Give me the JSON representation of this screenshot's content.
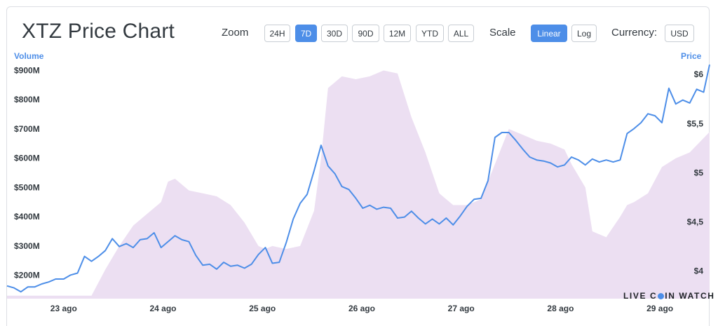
{
  "header": {
    "title": "XTZ Price Chart",
    "zoom_label": "Zoom",
    "zoom_options": [
      "24H",
      "7D",
      "30D",
      "90D",
      "12M",
      "YTD",
      "ALL"
    ],
    "zoom_selected": "7D",
    "scale_label": "Scale",
    "scale_options": [
      "Linear",
      "Log"
    ],
    "scale_selected": "Linear",
    "currency_label": "Currency:",
    "currency": "USD"
  },
  "watermark": {
    "before": "LIVE C",
    "after": "IN WATCH"
  },
  "colors": {
    "accent": "#4d8ee8",
    "volume_fill": "#ecdff2",
    "text": "#333a40"
  },
  "chart_data": {
    "type": "line",
    "left_axis": {
      "title": "Volume",
      "ticks": [
        "$200M",
        "$300M",
        "$400M",
        "$500M",
        "$600M",
        "$700M",
        "$800M",
        "$900M"
      ],
      "range": [
        120000000,
        930000000
      ]
    },
    "right_axis": {
      "title": "Price",
      "ticks": [
        "$4",
        "$4,5",
        "$5",
        "$5,5",
        "$6"
      ],
      "range": [
        3.72,
        6.13
      ]
    },
    "x_ticks": [
      "23 ago",
      "24 ago",
      "25 ago",
      "26 ago",
      "27 ago",
      "28 ago",
      "29 ago"
    ],
    "x_range": [
      -0.57,
      6.5
    ],
    "series": [
      {
        "name": "Price",
        "axis": "right",
        "kind": "line",
        "x": [
          -0.57,
          -0.5,
          -0.43,
          -0.36,
          -0.29,
          -0.22,
          -0.15,
          -0.08,
          0.0,
          0.07,
          0.14,
          0.21,
          0.28,
          0.35,
          0.42,
          0.49,
          0.56,
          0.63,
          0.7,
          0.77,
          0.84,
          0.91,
          0.98,
          1.05,
          1.12,
          1.19,
          1.26,
          1.33,
          1.4,
          1.47,
          1.54,
          1.61,
          1.68,
          1.75,
          1.82,
          1.89,
          1.96,
          2.03,
          2.1,
          2.17,
          2.24,
          2.31,
          2.38,
          2.45,
          2.52,
          2.59,
          2.66,
          2.73,
          2.8,
          2.87,
          2.94,
          3.01,
          3.08,
          3.15,
          3.22,
          3.29,
          3.36,
          3.43,
          3.5,
          3.57,
          3.64,
          3.71,
          3.78,
          3.85,
          3.92,
          3.99,
          4.06,
          4.13,
          4.2,
          4.27,
          4.34,
          4.41,
          4.48,
          4.55,
          4.62,
          4.69,
          4.76,
          4.83,
          4.9,
          4.97,
          5.04,
          5.11,
          5.18,
          5.25,
          5.32,
          5.39,
          5.46,
          5.53,
          5.6,
          5.67,
          5.74,
          5.81,
          5.88,
          5.95,
          6.02,
          6.09,
          6.16,
          6.23,
          6.3,
          6.37,
          6.44,
          6.5
        ],
        "values": [
          3.85,
          3.83,
          3.79,
          3.84,
          3.84,
          3.87,
          3.89,
          3.92,
          3.92,
          3.96,
          3.98,
          4.15,
          4.1,
          4.15,
          4.21,
          4.33,
          4.25,
          4.28,
          4.24,
          4.32,
          4.33,
          4.39,
          4.24,
          4.3,
          4.36,
          4.32,
          4.3,
          4.16,
          4.06,
          4.07,
          4.02,
          4.09,
          4.05,
          4.06,
          4.03,
          4.07,
          4.17,
          4.24,
          4.08,
          4.09,
          4.29,
          4.53,
          4.69,
          4.78,
          5.02,
          5.28,
          5.07,
          4.99,
          4.86,
          4.83,
          4.74,
          4.64,
          4.67,
          4.63,
          4.65,
          4.64,
          4.54,
          4.55,
          4.61,
          4.54,
          4.48,
          4.53,
          4.48,
          4.54,
          4.47,
          4.56,
          4.66,
          4.73,
          4.74,
          4.92,
          5.36,
          5.41,
          5.41,
          5.33,
          5.24,
          5.16,
          5.13,
          5.12,
          5.1,
          5.06,
          5.08,
          5.16,
          5.13,
          5.08,
          5.14,
          5.11,
          5.13,
          5.11,
          5.13,
          5.4,
          5.45,
          5.51,
          5.6,
          5.58,
          5.51,
          5.86,
          5.7,
          5.74,
          5.71,
          5.85,
          5.82,
          6.1
        ]
      },
      {
        "name": "Volume",
        "axis": "left",
        "kind": "area",
        "x": [
          -0.57,
          0.28,
          0.42,
          0.56,
          0.7,
          0.98,
          1.05,
          1.12,
          1.26,
          1.4,
          1.54,
          1.68,
          1.82,
          1.96,
          2.03,
          2.1,
          2.24,
          2.38,
          2.52,
          2.59,
          2.66,
          2.8,
          2.94,
          3.08,
          3.22,
          3.36,
          3.5,
          3.64,
          3.78,
          3.92,
          4.06,
          4.2,
          4.34,
          4.48,
          4.62,
          4.76,
          4.9,
          5.04,
          5.11,
          5.25,
          5.32,
          5.46,
          5.6,
          5.67,
          5.74,
          5.88,
          6.02,
          6.16,
          6.3,
          6.5
        ],
        "values": [
          130000000,
          130000000,
          220000000,
          300000000,
          370000000,
          450000000,
          520000000,
          530000000,
          490000000,
          480000000,
          470000000,
          440000000,
          380000000,
          300000000,
          290000000,
          300000000,
          290000000,
          300000000,
          420000000,
          600000000,
          840000000,
          880000000,
          870000000,
          880000000,
          900000000,
          890000000,
          740000000,
          620000000,
          480000000,
          440000000,
          440000000,
          460000000,
          580000000,
          700000000,
          680000000,
          660000000,
          650000000,
          630000000,
          580000000,
          500000000,
          350000000,
          330000000,
          400000000,
          440000000,
          450000000,
          480000000,
          570000000,
          600000000,
          620000000,
          690000000
        ]
      }
    ]
  }
}
